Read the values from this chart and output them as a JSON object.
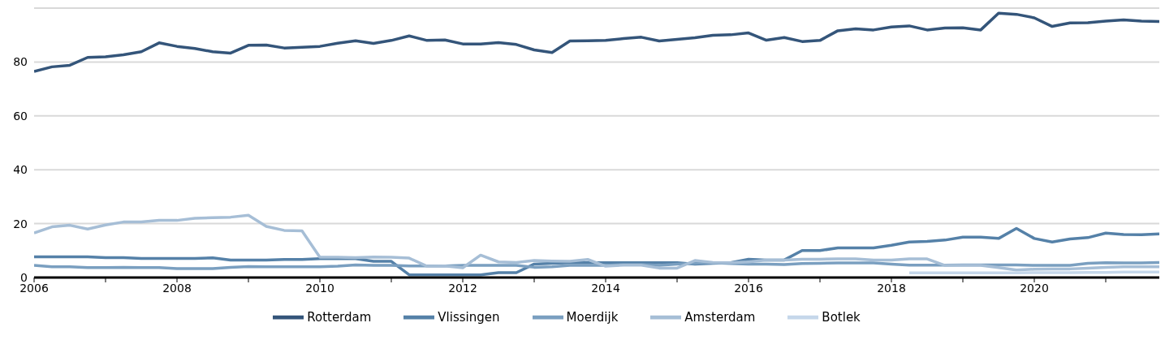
{
  "chart_data": {
    "type": "line",
    "x": [
      2006,
      2006.25,
      2006.5,
      2006.75,
      2007,
      2007.25,
      2007.5,
      2007.75,
      2008,
      2008.25,
      2008.5,
      2008.75,
      2009,
      2009.25,
      2009.5,
      2009.75,
      2010,
      2010.25,
      2010.5,
      2010.75,
      2011,
      2011.25,
      2011.5,
      2011.75,
      2012,
      2012.25,
      2012.5,
      2012.75,
      2013,
      2013.25,
      2013.5,
      2013.75,
      2014,
      2014.25,
      2014.5,
      2014.75,
      2015,
      2015.25,
      2015.5,
      2015.75,
      2016,
      2016.25,
      2016.5,
      2016.75,
      2017,
      2017.25,
      2017.5,
      2017.75,
      2018,
      2018.25,
      2018.5,
      2018.75,
      2019,
      2019.25,
      2019.5,
      2019.75,
      2020,
      2020.25,
      2020.5,
      2020.75,
      2021,
      2021.25,
      2021.5,
      2021.75
    ],
    "series": [
      {
        "name": "Rotterdam",
        "color": "#34557a",
        "values": [
          76.5,
          78.2,
          78.8,
          81.7,
          81.9,
          82.7,
          83.8,
          87.1,
          85.8,
          85.0,
          83.8,
          83.3,
          86.2,
          86.3,
          85.2,
          85.5,
          85.8,
          87.0,
          87.9,
          86.9,
          88.0,
          89.7,
          88.0,
          88.2,
          86.7,
          86.7,
          87.2,
          86.5,
          84.5,
          83.5,
          87.8,
          87.9,
          88.0,
          88.7,
          89.2,
          87.8,
          88.4,
          89.0,
          89.9,
          90.1,
          90.8,
          88.1,
          89.1,
          87.6,
          88.0,
          91.6,
          92.3,
          91.9,
          93.0,
          93.4,
          91.9,
          92.6,
          92.7,
          91.9,
          98.1,
          97.7,
          96.4,
          93.2,
          94.5,
          94.6,
          95.2,
          95.6,
          95.2,
          95.0
        ]
      },
      {
        "name": "Vlissingen",
        "color": "#5581a8",
        "values": [
          7.7,
          7.7,
          7.7,
          7.7,
          7.4,
          7.4,
          7.1,
          7.1,
          7.1,
          7.1,
          7.3,
          6.5,
          6.5,
          6.5,
          6.7,
          6.7,
          7.0,
          7.0,
          7.0,
          6.0,
          6.0,
          1.0,
          1.0,
          1.0,
          1.0,
          1.0,
          1.8,
          1.8,
          5.0,
          5.3,
          5.5,
          5.5,
          5.5,
          5.5,
          5.5,
          5.5,
          5.5,
          5.0,
          5.3,
          5.5,
          6.8,
          6.5,
          6.5,
          10.0,
          10.0,
          11.0,
          11.0,
          11.0,
          12.0,
          13.2,
          13.4,
          13.9,
          15.0,
          15.0,
          14.5,
          18.2,
          14.5,
          13.2,
          14.3,
          14.8,
          16.5,
          16.0,
          15.9,
          16.2
        ]
      },
      {
        "name": "Moerdijk",
        "color": "#7a9fc0",
        "values": [
          4.5,
          4.0,
          4.0,
          3.7,
          3.7,
          3.8,
          3.7,
          3.7,
          3.3,
          3.3,
          3.3,
          3.8,
          4.1,
          4.0,
          4.0,
          4.0,
          4.0,
          4.2,
          4.7,
          4.5,
          4.5,
          4.3,
          4.3,
          4.3,
          4.5,
          4.5,
          4.5,
          4.5,
          3.8,
          4.0,
          4.5,
          4.5,
          4.5,
          4.8,
          4.8,
          4.5,
          5.0,
          5.3,
          5.5,
          5.2,
          5.0,
          5.0,
          4.8,
          5.2,
          5.3,
          5.4,
          5.4,
          5.4,
          5.0,
          4.6,
          4.6,
          4.6,
          4.7,
          4.7,
          4.7,
          4.7,
          4.5,
          4.5,
          4.5,
          5.3,
          5.5,
          5.4,
          5.4,
          5.6
        ]
      },
      {
        "name": "Amsterdam",
        "color": "#a6bed6",
        "values": [
          16.5,
          18.8,
          19.4,
          18.0,
          19.5,
          20.6,
          20.6,
          21.2,
          21.2,
          22.0,
          22.2,
          22.4,
          23.1,
          19.0,
          17.5,
          17.3,
          7.5,
          7.5,
          7.4,
          7.6,
          7.5,
          7.2,
          4.2,
          4.3,
          3.6,
          8.3,
          5.8,
          5.6,
          6.3,
          6.1,
          6.0,
          6.7,
          4.2,
          4.6,
          4.6,
          3.5,
          3.5,
          6.3,
          5.6,
          5.5,
          5.8,
          6.5,
          6.5,
          6.8,
          6.8,
          6.9,
          6.9,
          6.5,
          6.5,
          6.9,
          6.9,
          4.5,
          4.5,
          4.5,
          3.7,
          2.8,
          3.1,
          3.2,
          3.2,
          3.5,
          3.8,
          4.0,
          4.0,
          4.0
        ]
      },
      {
        "name": "Botlek",
        "color": "#c5d7ea",
        "values": [
          null,
          null,
          null,
          null,
          null,
          null,
          null,
          null,
          null,
          null,
          null,
          null,
          null,
          null,
          null,
          null,
          null,
          null,
          null,
          null,
          null,
          null,
          null,
          null,
          null,
          null,
          null,
          null,
          null,
          null,
          null,
          null,
          null,
          null,
          null,
          null,
          null,
          null,
          null,
          null,
          null,
          null,
          null,
          null,
          null,
          null,
          null,
          null,
          null,
          1.7,
          1.7,
          1.7,
          1.7,
          1.7,
          1.7,
          1.7,
          1.8,
          1.8,
          1.8,
          1.9,
          1.9,
          2.0,
          2.0,
          2.0
        ]
      }
    ],
    "xlim": [
      2006,
      2021.75
    ],
    "xticks": [
      2006,
      {
        "value": 2007,
        "label": null
      },
      2008,
      {
        "value": 2009,
        "label": null
      },
      2010,
      {
        "value": 2011,
        "label": null
      },
      2012,
      {
        "value": 2013,
        "label": null
      },
      2014,
      {
        "value": 2015,
        "label": null
      },
      2016,
      {
        "value": 2017,
        "label": null
      },
      2018,
      {
        "value": 2019,
        "label": null
      },
      2020,
      {
        "value": 2021,
        "label": null
      }
    ],
    "ylim": [
      0,
      100
    ],
    "yticks": [
      0,
      20,
      40,
      60,
      80
    ],
    "grid": "y",
    "legend": "bottom",
    "marker": "none",
    "line_style": "solid"
  }
}
